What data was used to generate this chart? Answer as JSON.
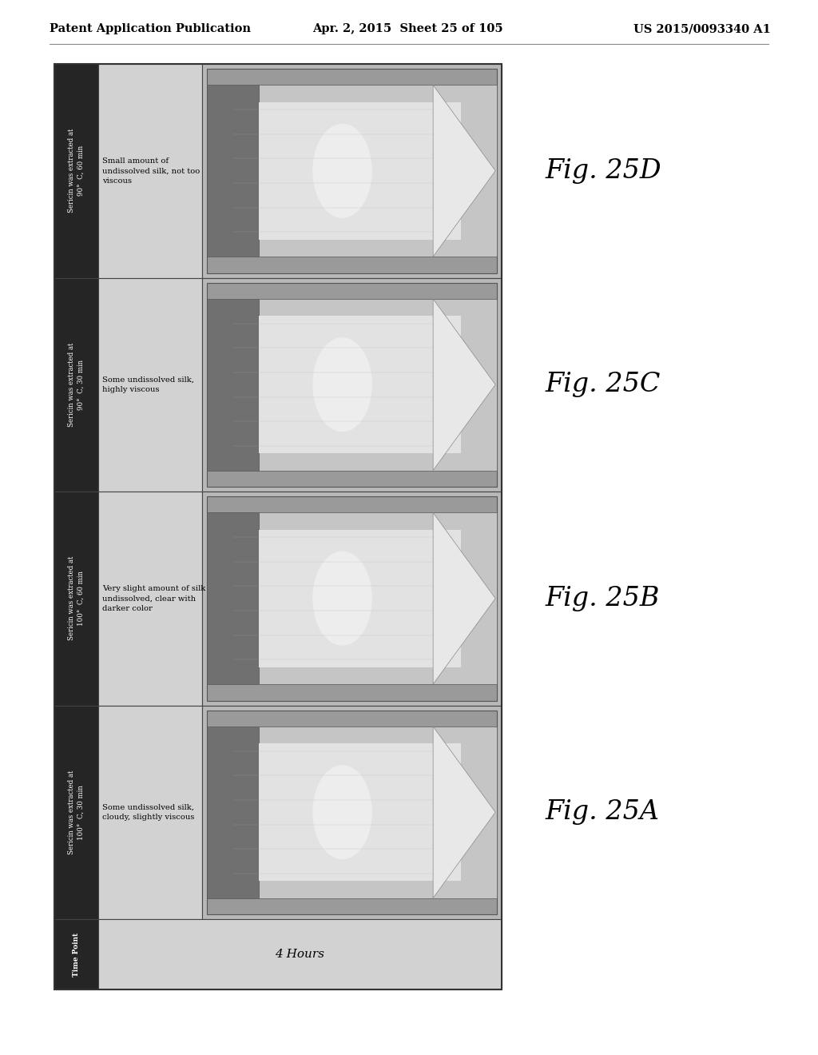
{
  "header_left": "Patent Application Publication",
  "header_mid": "Apr. 2, 2015  Sheet 25 of 105",
  "header_right": "US 2015/0093340 A1",
  "bg_color": "#ffffff",
  "row_headers": [
    "Sericin was extracted at\n90°  C, 60 min",
    "Sericin was extracted at\n90°  C, 30 min",
    "Sericin was extracted at\n100°  C, 60 min",
    "Sericin was extracted at\n100°  C, 30 min"
  ],
  "descriptions": [
    "Small amount of\nundissolved silk, not too\nviscous",
    "Some undissolved silk,\nhighly viscous",
    "Very slight amount of silk\nundissolved, clear with\ndarker color",
    "Some undissolved silk,\ncloudy, slightly viscous"
  ],
  "fig_labels": [
    "Fig. 25D",
    "Fig. 25C",
    "Fig. 25B",
    "Fig. 25A"
  ],
  "time_point_label": "4 Hours",
  "dark_bg": "#252525",
  "light_gray": "#d2d2d2",
  "medium_gray": "#b8b8b8",
  "tube_bg": "#a0a0a0",
  "tube_light": "#e0e0e0",
  "tube_dark": "#787878",
  "header_sep_color": "#555555"
}
